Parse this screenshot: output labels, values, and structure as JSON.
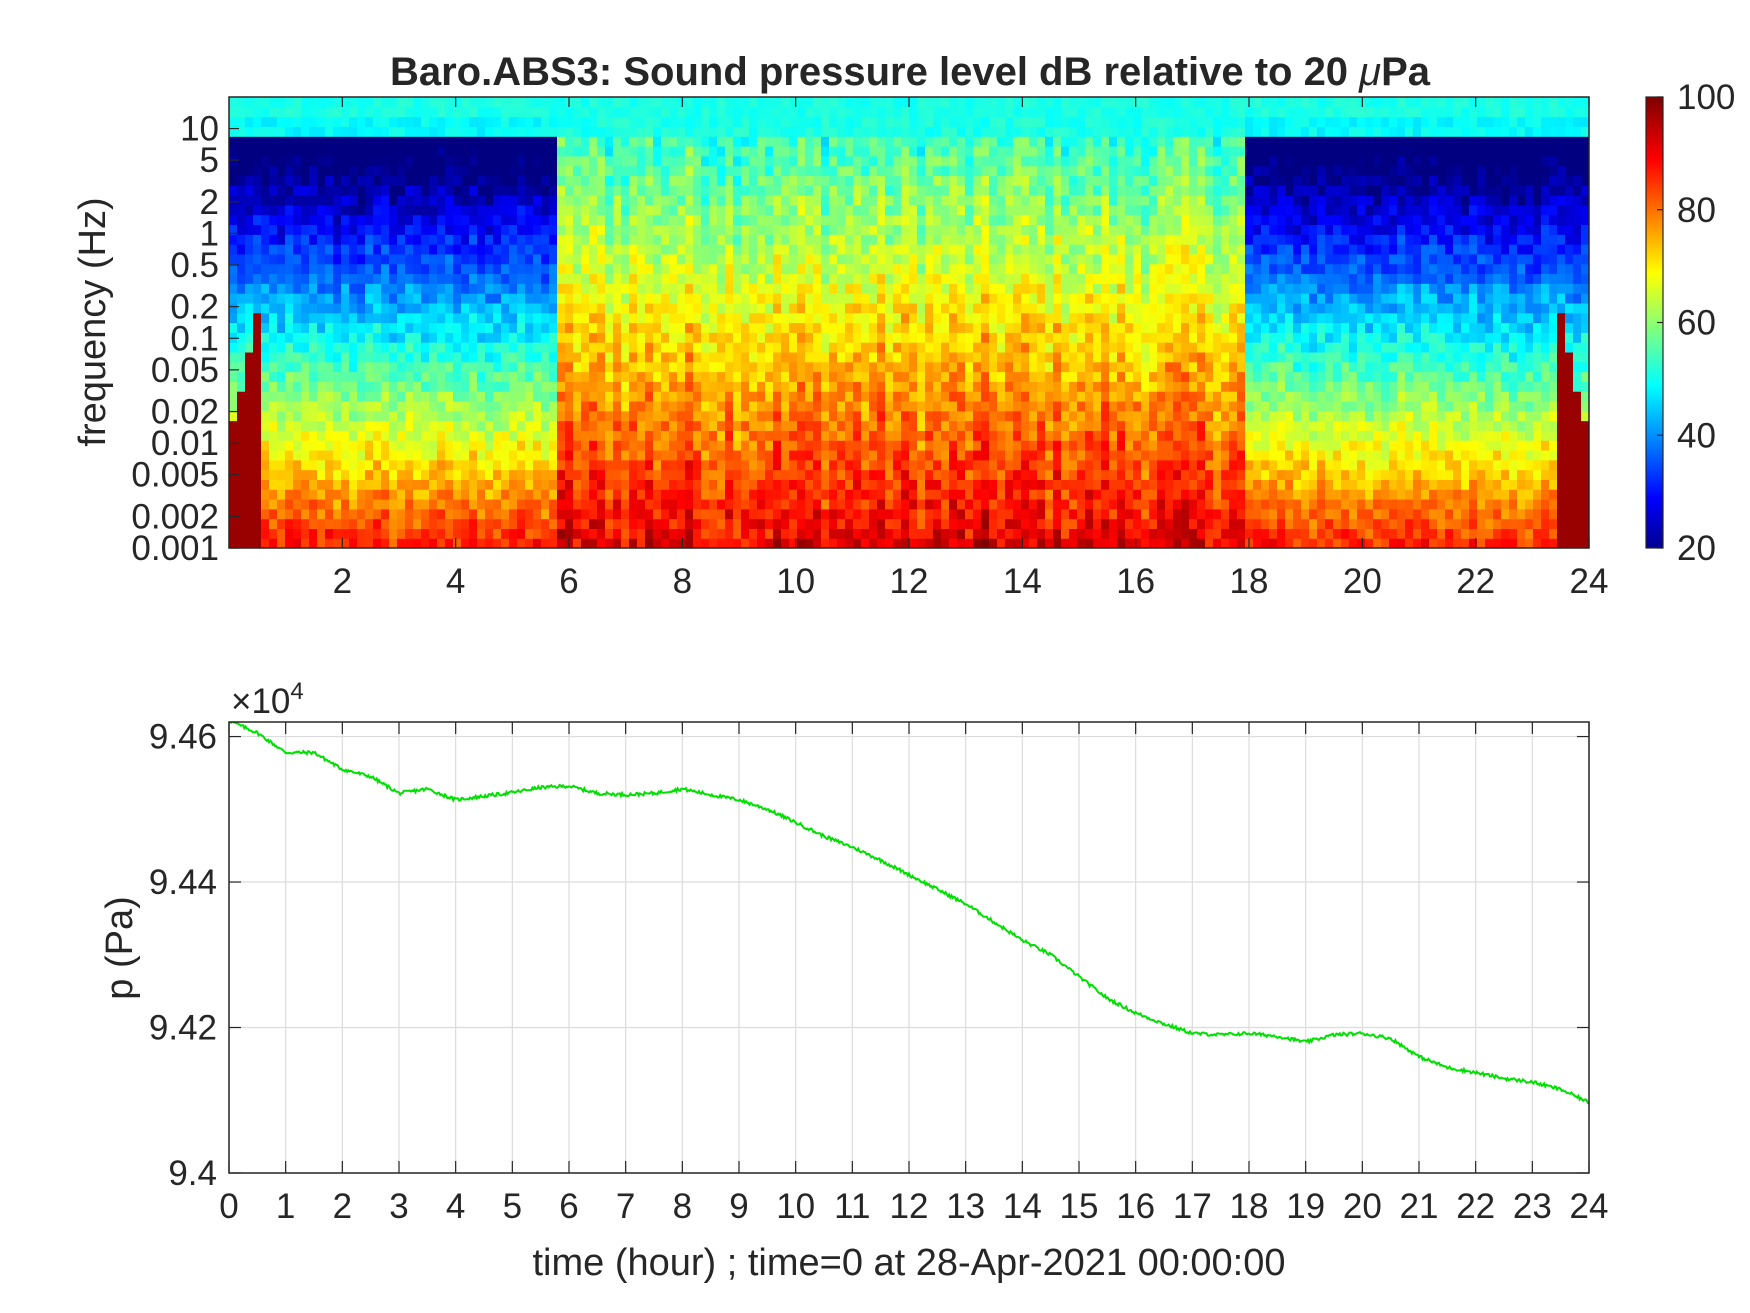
{
  "colors": {
    "line": "#00e000",
    "axis": "#262626",
    "grid": "#dcdcdc",
    "colormap": "jet"
  },
  "chart_data": [
    {
      "type": "heatmap",
      "title_text": "Baro.ABS3: Sound pressure level dB relative to 20 ",
      "title_symbol": "μ",
      "title_tail": "Pa",
      "title": "Baro.ABS3: Sound pressure level dB relative to 20 μPa",
      "ylabel": "frequency (Hz)",
      "xlabel": "",
      "x_ticks": [
        "2",
        "4",
        "6",
        "8",
        "10",
        "12",
        "14",
        "16",
        "18",
        "20",
        "22",
        "24"
      ],
      "x_tick_values": [
        2,
        4,
        6,
        8,
        10,
        12,
        14,
        16,
        18,
        20,
        22,
        24
      ],
      "xlim": [
        0,
        24
      ],
      "y_ticks": [
        "10",
        "5",
        "2",
        "1",
        "0.5",
        "0.2",
        "0.1",
        "0.05",
        "0.02",
        "0.01",
        "0.005",
        "0.002",
        "0.001"
      ],
      "y_tick_values": [
        10,
        5,
        2,
        1,
        0.5,
        0.2,
        0.1,
        0.05,
        0.02,
        0.01,
        0.005,
        0.002,
        0.001
      ],
      "y_scale": "log",
      "ylim": [
        0.001,
        20
      ],
      "colorbar": {
        "ticks": [
          "100",
          "80",
          "60",
          "40",
          "20"
        ],
        "tick_values": [
          100,
          80,
          60,
          40,
          20
        ],
        "range": [
          20,
          100
        ]
      },
      "quiet_periods_hours": [
        [
          0,
          5.8
        ],
        [
          17.9,
          24
        ]
      ],
      "active_period_hours": [
        5.8,
        17.9
      ]
    },
    {
      "type": "line",
      "xlabel": "time (hour) ; time=0 at 28-Apr-2021 00:00:00",
      "ylabel": "p (Pa)",
      "exponent_prefix": "×10",
      "exponent_power": "4",
      "xlim": [
        0,
        24
      ],
      "ylim": [
        9.4,
        9.462
      ],
      "x_ticks": [
        "0",
        "1",
        "2",
        "3",
        "4",
        "5",
        "6",
        "7",
        "8",
        "9",
        "10",
        "11",
        "12",
        "13",
        "14",
        "15",
        "16",
        "17",
        "18",
        "19",
        "20",
        "21",
        "22",
        "23",
        "24"
      ],
      "y_ticks": [
        "9.46",
        "9.44",
        "9.42",
        "9.4"
      ],
      "y_tick_values": [
        9.46,
        9.44,
        9.42,
        9.4
      ],
      "grid": true,
      "series": [
        {
          "x": [
            0,
            0.5,
            1,
            1.5,
            2,
            2.5,
            3,
            3.5,
            4,
            4.5,
            5,
            5.5,
            6,
            6.5,
            7,
            7.5,
            8,
            8.5,
            9,
            9.5,
            10,
            10.5,
            11,
            11.5,
            12,
            12.5,
            13,
            13.5,
            14,
            14.5,
            15,
            15.5,
            16,
            16.5,
            17,
            17.5,
            18,
            18.5,
            19,
            19.5,
            20,
            20.5,
            21,
            21.5,
            22,
            22.5,
            23,
            23.5,
            24
          ],
          "values": [
            9.4622,
            9.4605,
            9.4578,
            9.4578,
            9.4555,
            9.4545,
            9.4522,
            9.4528,
            9.4513,
            9.4518,
            9.4523,
            9.453,
            9.4532,
            9.4522,
            9.452,
            9.4522,
            9.4528,
            9.452,
            9.4513,
            9.45,
            9.4482,
            9.4463,
            9.4448,
            9.443,
            9.441,
            9.439,
            9.437,
            9.4345,
            9.432,
            9.43,
            9.427,
            9.424,
            9.422,
            9.4205,
            9.4192,
            9.419,
            9.4192,
            9.4188,
            9.418,
            9.419,
            9.4192,
            9.4185,
            9.416,
            9.4145,
            9.4138,
            9.413,
            9.4125,
            9.4115,
            9.4097
          ]
        }
      ]
    }
  ]
}
